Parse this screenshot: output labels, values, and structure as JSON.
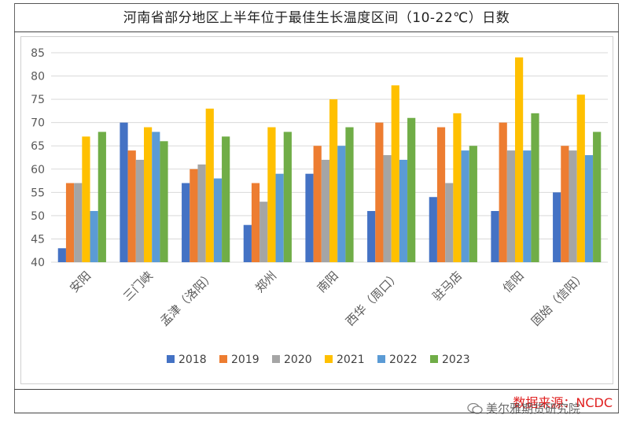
{
  "title": "河南省部分地区上半年位于最佳生长温度区间（10-22℃）日数",
  "source": "数据来源：NCDC",
  "watermark": "美尔雅期货研究院",
  "colors": {
    "2018": "#4472c4",
    "2019": "#ed7d31",
    "2020": "#a5a5a5",
    "2021": "#ffc000",
    "2022": "#5b9bd5",
    "2023": "#70ad47"
  },
  "chart_data": {
    "type": "bar",
    "title": "河南省部分地区上半年位于最佳生长温度区间（10-22℃）日数",
    "categories": [
      "安阳",
      "三门峡",
      "孟津（洛阳）",
      "郑州",
      "南阳",
      "西华（周口）",
      "驻马店",
      "信阳",
      "固始（信阳）"
    ],
    "series": [
      {
        "name": "2018",
        "values": [
          43,
          70,
          57,
          48,
          59,
          51,
          54,
          51,
          55
        ]
      },
      {
        "name": "2019",
        "values": [
          57,
          64,
          60,
          57,
          65,
          70,
          69,
          70,
          65
        ]
      },
      {
        "name": "2020",
        "values": [
          57,
          62,
          61,
          53,
          62,
          63,
          57,
          64,
          64
        ]
      },
      {
        "name": "2021",
        "values": [
          67,
          69,
          73,
          69,
          75,
          78,
          72,
          84,
          76
        ]
      },
      {
        "name": "2022",
        "values": [
          51,
          68,
          58,
          59,
          65,
          62,
          64,
          64,
          63
        ]
      },
      {
        "name": "2023",
        "values": [
          68,
          66,
          67,
          68,
          69,
          71,
          65,
          72,
          68
        ]
      }
    ],
    "ylim": [
      40,
      85
    ],
    "yticks": [
      40,
      45,
      50,
      55,
      60,
      65,
      70,
      75,
      80,
      85
    ],
    "grid": true,
    "legend": "bottom",
    "xlabel": "",
    "ylabel": ""
  }
}
